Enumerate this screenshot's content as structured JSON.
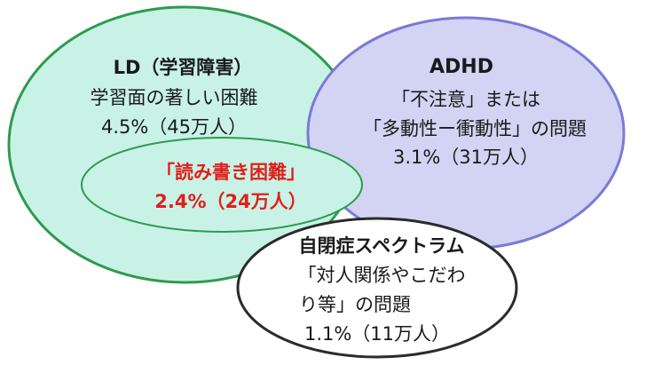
{
  "colors": {
    "ld_fill": "#c9f2e6",
    "ld_stroke": "#2e9b4e",
    "adhd_fill": "#d3d3f3",
    "adhd_stroke": "#7a7ad8",
    "autism_fill": "#ffffff",
    "autism_stroke": "#2b2b2b",
    "overlap_fill": "#c9f2e6",
    "overlap_stroke": "#2e9b4e",
    "highlight_text": "#e0201b"
  },
  "ld": {
    "title": "LD（学習障害）",
    "description": "学習面の著しい困難",
    "stat": "4.5%（45万人）"
  },
  "adhd": {
    "title": "ADHD",
    "line1": "「不注意」または",
    "line2": "「多動性ー衝動性」の問題",
    "stat": "3.1%（31万人）"
  },
  "reading": {
    "title": "「読み書き困難」",
    "stat": "2.4%（24万人）"
  },
  "autism": {
    "title": "自閉症スペクトラム",
    "line1": "「対人関係やこだわ",
    "line2": "り等」の問題",
    "stat": "1.1%（11万人）"
  }
}
